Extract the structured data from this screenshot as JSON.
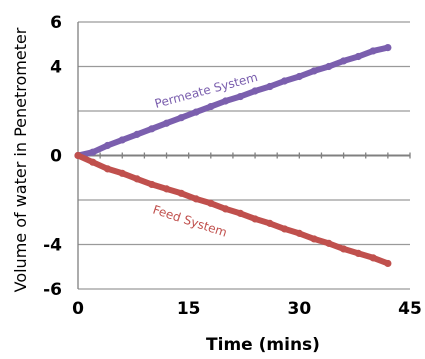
{
  "chart_data": {
    "type": "line",
    "xlabel": "Time (mins)",
    "ylabel": "Volume of water in Penetrometer",
    "xlim": [
      0,
      45
    ],
    "ylim": [
      -6,
      6
    ],
    "x_ticks": [
      "0",
      "15",
      "30",
      "45"
    ],
    "y_ticks": [
      "6",
      "4",
      "0",
      "-4",
      "-6"
    ],
    "y_tick_values": [
      6,
      4,
      0,
      -4,
      -6
    ],
    "grid": true,
    "series": [
      {
        "name": "Permeate System",
        "color": "#7b5fae",
        "x": [
          0,
          2,
          4,
          6,
          8,
          10,
          12,
          14,
          16,
          18,
          20,
          22,
          24,
          26,
          28,
          30,
          32,
          34,
          36,
          38,
          40,
          42
        ],
        "values": [
          0,
          0.15,
          0.45,
          0.7,
          0.95,
          1.2,
          1.45,
          1.7,
          1.95,
          2.2,
          2.45,
          2.65,
          2.9,
          3.1,
          3.35,
          3.55,
          3.8,
          4.0,
          4.25,
          4.45,
          4.7,
          4.85
        ]
      },
      {
        "name": "Feed System",
        "color": "#c0504d",
        "x": [
          0,
          2,
          4,
          6,
          8,
          10,
          12,
          14,
          16,
          18,
          20,
          22,
          24,
          26,
          28,
          30,
          32,
          34,
          36,
          38,
          40,
          42
        ],
        "values": [
          0,
          -0.3,
          -0.6,
          -0.8,
          -1.05,
          -1.3,
          -1.5,
          -1.7,
          -1.95,
          -2.15,
          -2.4,
          -2.6,
          -2.85,
          -3.05,
          -3.3,
          -3.5,
          -3.75,
          -3.95,
          -4.2,
          -4.4,
          -4.6,
          -4.85
        ]
      }
    ]
  }
}
